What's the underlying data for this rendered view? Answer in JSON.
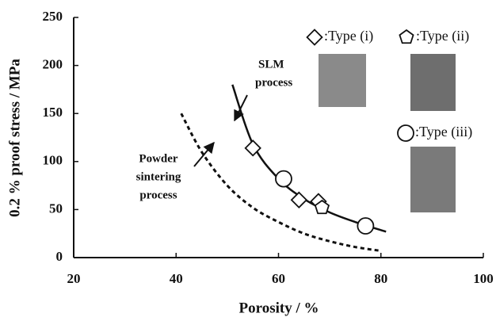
{
  "chart_data": {
    "type": "scatter",
    "xlabel": "Porosity / %",
    "ylabel": "0.2 % proof stress / MPa",
    "xlim": [
      20,
      100
    ],
    "xticks": [
      20,
      40,
      60,
      80,
      100
    ],
    "ylim": [
      0,
      250
    ],
    "yticks": [
      0,
      50,
      100,
      150,
      200,
      250
    ],
    "series": [
      {
        "name": ":Type (i)",
        "marker": "diamond",
        "color": "#111111",
        "x": [
          55,
          64,
          67.8
        ],
        "values": [
          114,
          60,
          58.5
        ]
      },
      {
        "name": ":Type (ii)",
        "marker": "pentagon",
        "color": "#111111",
        "x": [
          68.5
        ],
        "values": [
          52
        ]
      },
      {
        "name": ":Type (iii)",
        "marker": "circle",
        "color": "#111111",
        "x": [
          61,
          77
        ],
        "values": [
          82,
          33
        ]
      }
    ],
    "curves": [
      {
        "style": "solid",
        "color": "#111111",
        "x": [
          51,
          55,
          60,
          65,
          70,
          75,
          81
        ],
        "values": [
          180,
          118,
          82,
          61,
          47,
          37,
          27
        ]
      },
      {
        "style": "dashed",
        "color": "#111111",
        "x": [
          41,
          45,
          50,
          55,
          60,
          65,
          70,
          75,
          80
        ],
        "values": [
          150,
          110,
          75,
          52,
          37,
          25,
          17,
          11,
          7
        ]
      }
    ],
    "annotations": [
      {
        "lines": [
          "SLM",
          "process"
        ]
      },
      {
        "lines": [
          "Powder",
          "sintering",
          "process"
        ]
      }
    ]
  }
}
